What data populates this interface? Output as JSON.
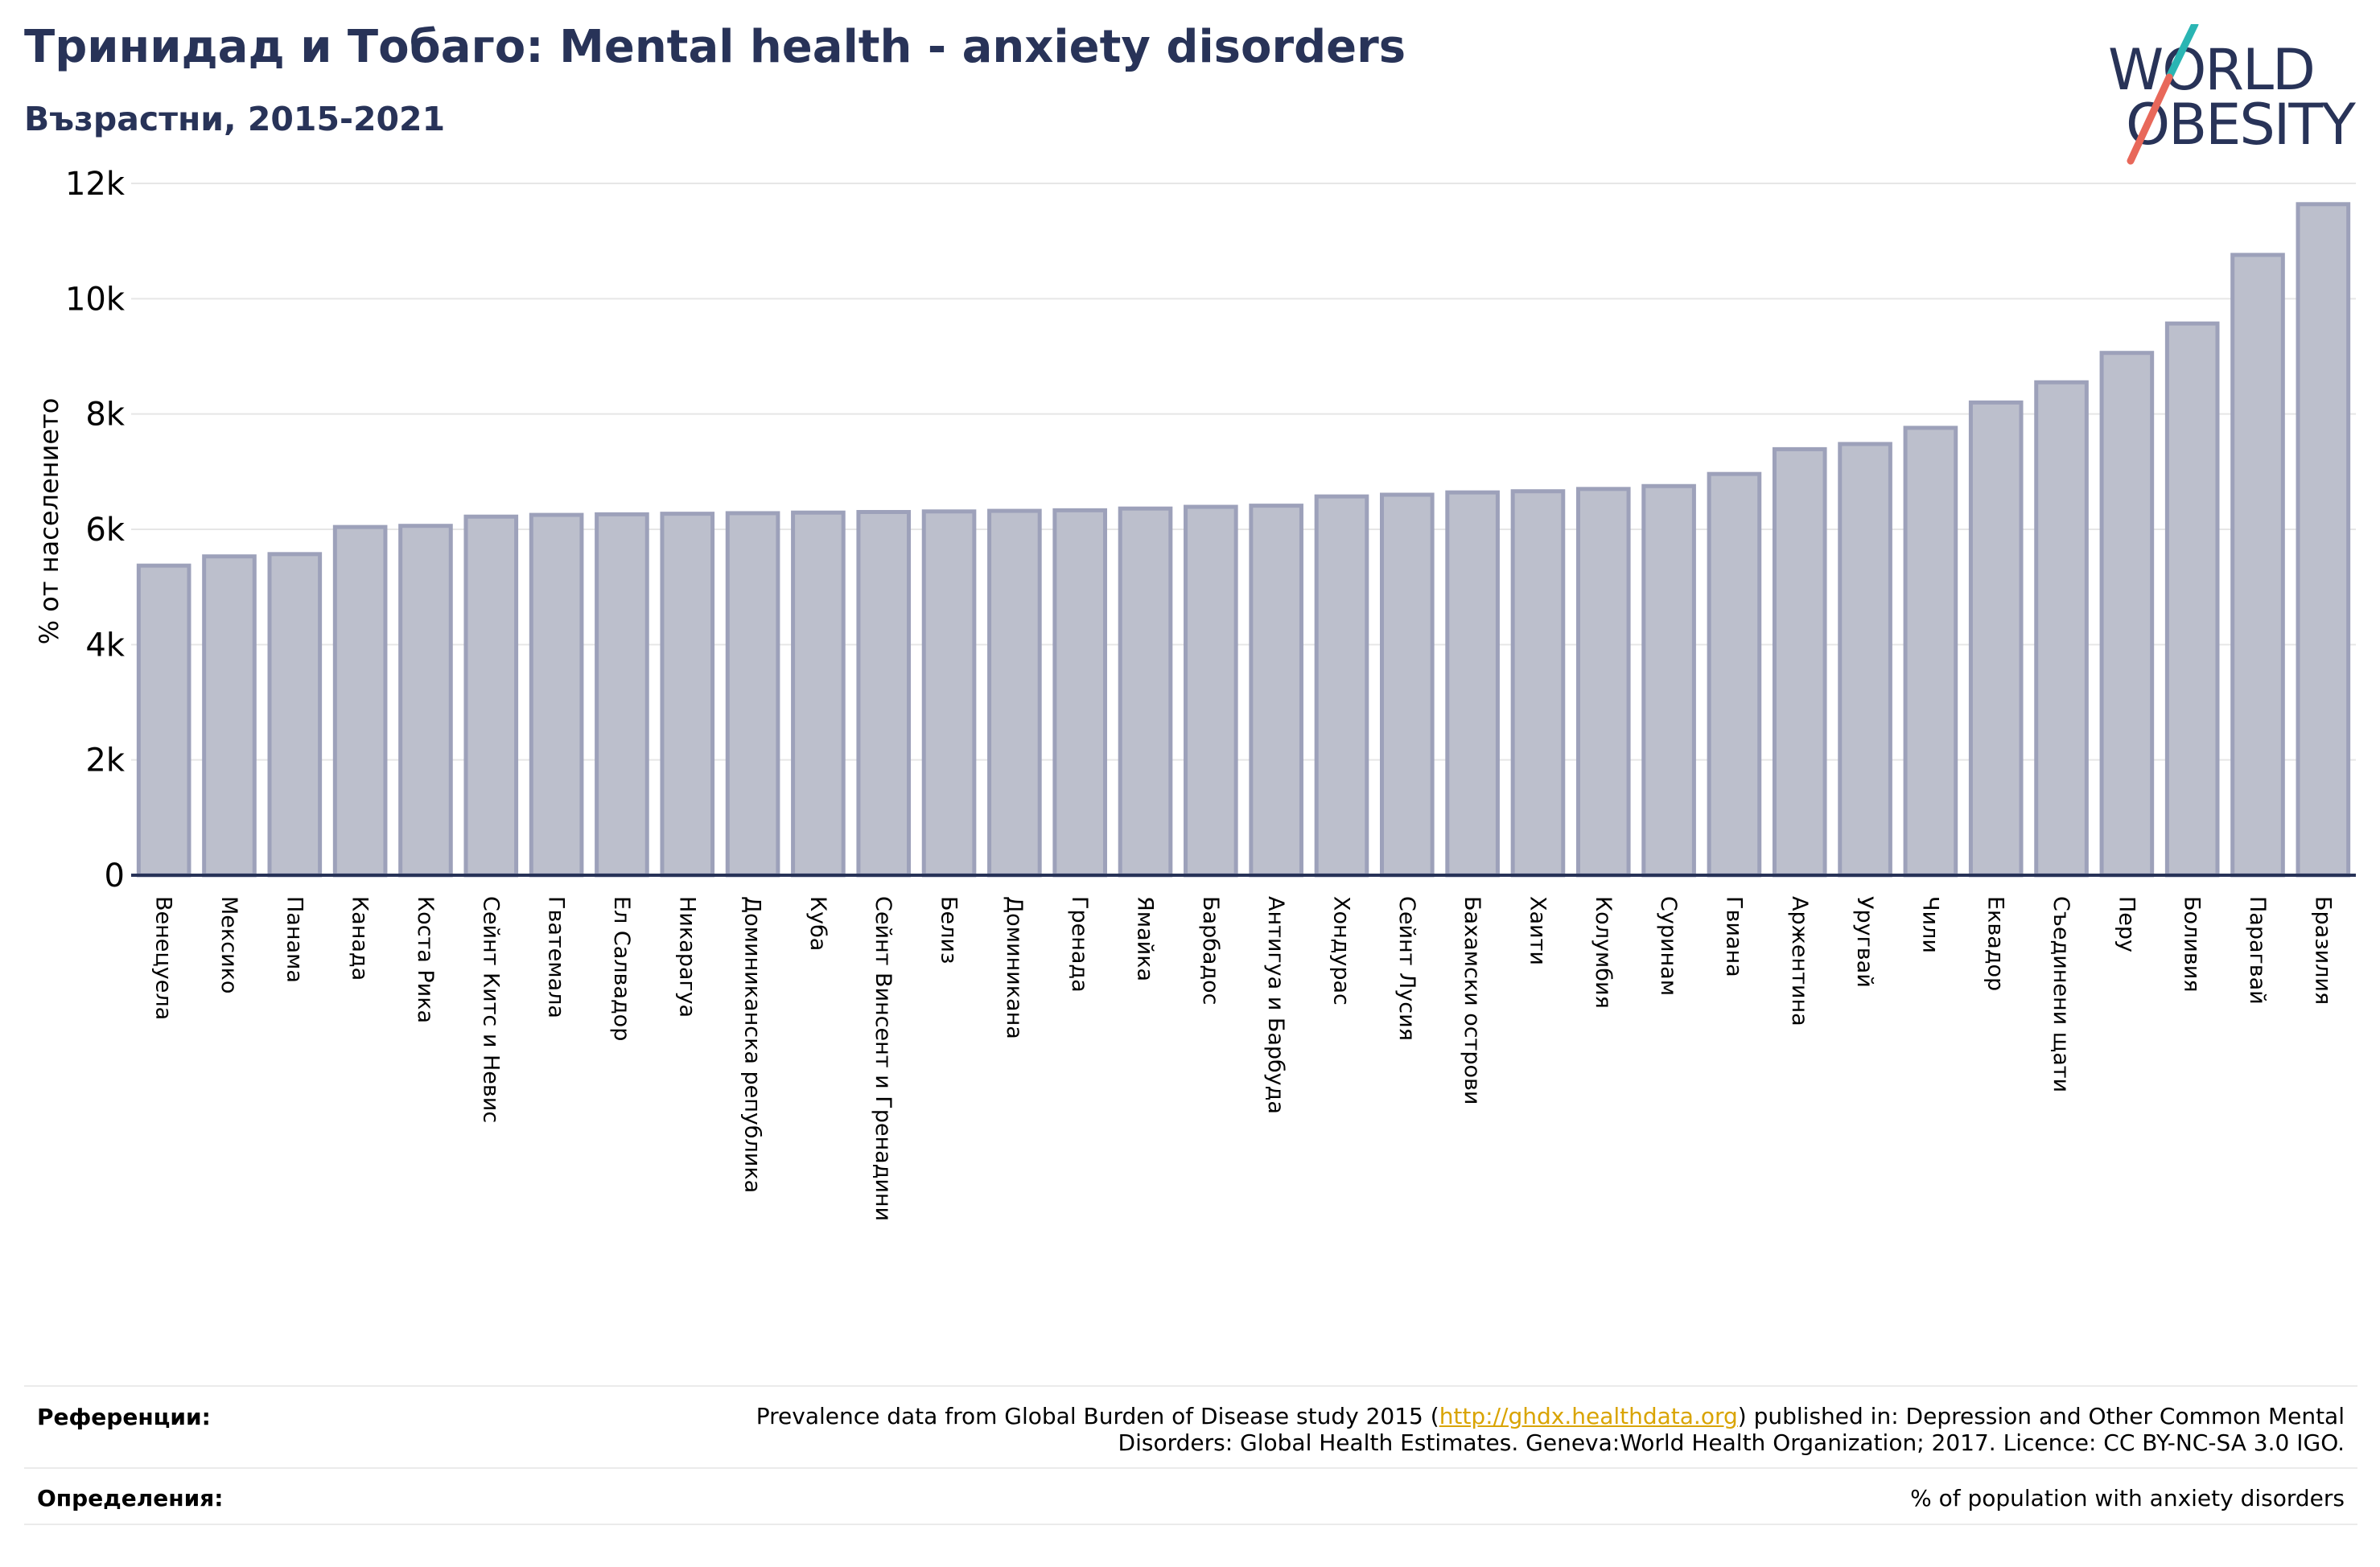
{
  "header": {
    "title": "Тринидад и Тобаго: Mental health - anxiety disorders",
    "subtitle": "Възрастни, 2015-2021"
  },
  "logo": {
    "line1": "WORLD",
    "line2": "OBESITY",
    "colors": {
      "text": "#283358",
      "slash_teal": "#2ab5b3",
      "slash_coral": "#e8685a"
    }
  },
  "chart_data": {
    "type": "bar",
    "title": "",
    "xlabel": "",
    "ylabel": "% от населението",
    "ylim": [
      0,
      12000
    ],
    "yticks": [
      0,
      2000,
      4000,
      6000,
      8000,
      10000,
      12000
    ],
    "ytick_labels": [
      "0",
      "2k",
      "4k",
      "6k",
      "8k",
      "10k",
      "12k"
    ],
    "grid": true,
    "legend": "none",
    "colors": {
      "bar_fill": "#bcbfcc",
      "bar_edge": "#9da1ba",
      "axis": "#283358",
      "grid": "#e6e6e6"
    },
    "categories": [
      "Венецуела",
      "Мексико",
      "Панама",
      "Канада",
      "Коста Рика",
      "Сейнт Китс и Невис",
      "Гватемала",
      "Ел Салвадор",
      "Никарагуа",
      "Доминиканска република",
      "Куба",
      "Сейнт Винсент и Гренадини",
      "Белиз",
      "Доминикана",
      "Гренада",
      "Ямайка",
      "Барбадос",
      "Антигуа и Барбуда",
      "Хондурас",
      "Сейнт Лусия",
      "Бахамски острови",
      "Хаити",
      "Колумбия",
      "Суринам",
      "Гвиана",
      "Аржентина",
      "Уругвай",
      "Чили",
      "Еквадор",
      "Съединени щати",
      "Перу",
      "Боливия",
      "Парагвай",
      "Бразилия"
    ],
    "values": [
      5370,
      5530,
      5570,
      6040,
      6060,
      6220,
      6250,
      6260,
      6270,
      6280,
      6290,
      6300,
      6310,
      6320,
      6330,
      6360,
      6390,
      6410,
      6570,
      6600,
      6640,
      6660,
      6700,
      6750,
      6960,
      7390,
      7480,
      7760,
      8200,
      8550,
      9060,
      9570,
      10760,
      11640
    ]
  },
  "footer": {
    "references_label": "Референции:",
    "references_pre": "Prevalence data from Global Burden of Disease study 2015 (",
    "references_link": "http://ghdx.healthdata.org",
    "references_post": ") published in: Depression and Other Common Mental",
    "references_line2": "Disorders: Global Health Estimates. Geneva:World Health Organization; 2017. Licence: CC BY-NC-SA 3.0 IGO.",
    "definitions_label": "Определения:",
    "definitions_text": "% of population with anxiety disorders"
  }
}
